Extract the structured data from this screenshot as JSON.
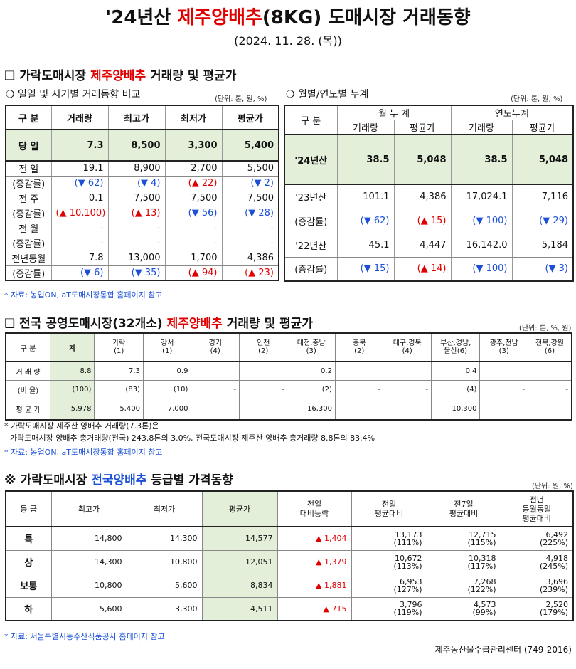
{
  "header": {
    "title_pre": "'24년산 ",
    "title_red": "제주양배추",
    "title_post": "(8KG) 도매시장 거래동향",
    "date": "(2024. 11. 28. (목))"
  },
  "section1": {
    "box": "❑",
    "title_pre": "가락도매시장 ",
    "title_red": "제주양배추",
    "title_post": " 거래량 및 평균가",
    "left": {
      "subtitle": "❍ 일일 및 시기별 거래동향 비교",
      "unit": "(단위: 톤, 원, %)",
      "headers": [
        "구 분",
        "거래량",
        "최고가",
        "최저가",
        "평균가"
      ],
      "today": {
        "label": "당 일",
        "values": [
          "7.3",
          "8,500",
          "3,300",
          "5,400"
        ]
      },
      "rows": [
        {
          "label": "전 일",
          "values": [
            "19.1",
            "8,900",
            "2,700",
            "5,500"
          ],
          "label2": "(증감률)",
          "changes": [
            "(▼ 62)",
            "(▼ 4)",
            "(▲ 22)",
            "(▼ 2)"
          ]
        },
        {
          "label": "전 주",
          "values": [
            "0.1",
            "7,500",
            "7,500",
            "7,500"
          ],
          "label2": "(증감률)",
          "changes": [
            "(▲ 10,100)",
            "(▲ 13)",
            "(▼ 56)",
            "(▼ 28)"
          ]
        },
        {
          "label": "전 월",
          "values": [
            "-",
            "-",
            "-",
            "-"
          ],
          "label2": "(증감률)",
          "changes": [
            "-",
            "-",
            "-",
            "-"
          ]
        },
        {
          "label": "전년동월",
          "values": [
            "7.8",
            "13,000",
            "1,700",
            "4,386"
          ],
          "label2": "(증감률)",
          "changes": [
            "(▼ 6)",
            "(▼ 35)",
            "(▲ 94)",
            "(▲ 23)"
          ]
        }
      ]
    },
    "right": {
      "subtitle": "❍ 월별/연도별 누계",
      "unit": "(단위: 톤, 원, %)",
      "headers": {
        "label": "구 분",
        "month": "월 누 계",
        "year": "연도누계",
        "vol": "거래량",
        "avg": "평균가"
      },
      "current": {
        "label": "'24년산",
        "values": [
          "38.5",
          "5,048",
          "38.5",
          "5,048"
        ]
      },
      "rows": [
        {
          "label": "'23년산",
          "values": [
            "101.1",
            "4,386",
            "17,024.1",
            "7,116"
          ],
          "label2": "(증감률)",
          "changes": [
            "(▼ 62)",
            "(▲ 15)",
            "(▼ 100)",
            "(▼ 29)"
          ]
        },
        {
          "label": "'22년산",
          "values": [
            "45.1",
            "4,447",
            "16,142.0",
            "5,184"
          ],
          "label2": "(증감률)",
          "changes": [
            "(▼ 15)",
            "(▲ 14)",
            "(▼ 100)",
            "(▼ 3)"
          ]
        }
      ]
    },
    "note": "* 자료: 농업ON, aT도매시장통합 홈페이지 참고"
  },
  "section2": {
    "box": "❑",
    "title_pre": "전국 공영도매시장(32개소) ",
    "title_red": "제주양배추",
    "title_post": " 거래량 및 평균가",
    "unit": "(단위: 톤, %, 원)",
    "headers": [
      {
        "name": "구 분",
        "sub": ""
      },
      {
        "name": "계",
        "sub": ""
      },
      {
        "name": "가락",
        "sub": "(1)"
      },
      {
        "name": "강서",
        "sub": "(1)"
      },
      {
        "name": "경기",
        "sub": "(4)"
      },
      {
        "name": "인천",
        "sub": "(2)"
      },
      {
        "name": "대전,충남",
        "sub": "(3)"
      },
      {
        "name": "충북",
        "sub": "(2)"
      },
      {
        "name": "대구,경북",
        "sub": "(4)"
      },
      {
        "name": "부산,경남,",
        "sub": "울산(6)"
      },
      {
        "name": "광주,전남",
        "sub": "(3)"
      },
      {
        "name": "전북,강원",
        "sub": "(6)"
      }
    ],
    "rows": [
      {
        "label": "거 래 량",
        "values": [
          "8.8",
          "7.3",
          "0.9",
          "",
          "",
          "0.2",
          "",
          "",
          "0.4",
          "",
          ""
        ]
      },
      {
        "label": "(비 율)",
        "values": [
          "(100)",
          "(83)",
          "(10)",
          "-",
          "-",
          "(2)",
          "-",
          "-",
          "(4)",
          "-",
          "-"
        ]
      },
      {
        "label": "평 균 가",
        "values": [
          "5,978",
          "5,400",
          "7,000",
          "",
          "",
          "16,300",
          "",
          "",
          "10,300",
          "",
          ""
        ]
      }
    ],
    "note1": "* 가락도매시장 제주산 양배추 거래량(7.3톤)은",
    "note2": "가락도매시장 양배추 총거래량(전국) 243.8톤의 3.0%, 전국도매시장 제주산 양배추 총거래량 8.8톤의 83.4%",
    "note3": "* 자료: 농업ON, aT도매시장통합 홈페이지 참고"
  },
  "section3": {
    "mark": "※",
    "title_pre": "가락도매시장 ",
    "title_blue": "전국양배추",
    "title_post": " 등급별 가격동향",
    "unit": "(단위: 원, %)",
    "headers": [
      "등 급",
      "최고가",
      "최저가",
      "평균가",
      "전일\n대비등락",
      "전일\n평균대비",
      "전7일\n평균대비",
      "전년\n동월동일\n평균대비"
    ],
    "rows": [
      {
        "grade": "특",
        "max": "14,800",
        "min": "14,300",
        "avg": "14,577",
        "diff": "▲ 1,404",
        "prev": "13,173",
        "prev_pct": "(111%)",
        "w7": "12,715",
        "w7_pct": "(115%)",
        "ly": "6,492",
        "ly_pct": "(225%)"
      },
      {
        "grade": "상",
        "max": "14,300",
        "min": "10,800",
        "avg": "12,051",
        "diff": "▲ 1,379",
        "prev": "10,672",
        "prev_pct": "(113%)",
        "w7": "10,318",
        "w7_pct": "(117%)",
        "ly": "4,918",
        "ly_pct": "(245%)"
      },
      {
        "grade": "보통",
        "max": "10,800",
        "min": "5,600",
        "avg": "8,834",
        "diff": "▲ 1,881",
        "prev": "6,953",
        "prev_pct": "(127%)",
        "w7": "7,268",
        "w7_pct": "(122%)",
        "ly": "3,696",
        "ly_pct": "(239%)"
      },
      {
        "grade": "하",
        "max": "5,600",
        "min": "3,300",
        "avg": "4,511",
        "diff": "▲ 715",
        "prev": "3,796",
        "prev_pct": "(119%)",
        "w7": "4,573",
        "w7_pct": "(99%)",
        "ly": "2,520",
        "ly_pct": "(179%)"
      }
    ],
    "note": "* 자료: 서울특별시농수산식품공사 홈페이지 참고"
  },
  "footer": "제주농산물수급관리센터 (749-2016)"
}
